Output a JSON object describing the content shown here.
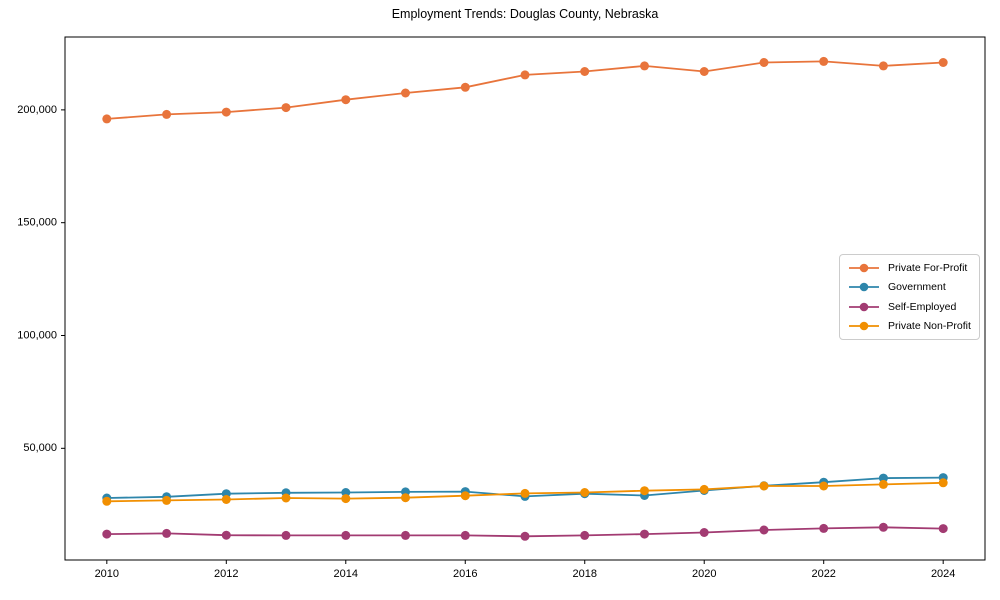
{
  "chart_data": {
    "type": "line",
    "title": "Employment Trends: Douglas County, Nebraska",
    "xlabel": "",
    "ylabel": "",
    "grid": false,
    "legend_position": "center right",
    "xlim": [
      2009.3,
      2024.7
    ],
    "ylim": [
      500,
      232300
    ],
    "x": [
      2010,
      2011,
      2012,
      2013,
      2014,
      2015,
      2016,
      2017,
      2018,
      2019,
      2020,
      2021,
      2022,
      2023,
      2024
    ],
    "xticks": {
      "values": [
        2010,
        2012,
        2014,
        2016,
        2018,
        2020,
        2022,
        2024
      ],
      "labels": [
        "2010",
        "2012",
        "2014",
        "2016",
        "2018",
        "2020",
        "2022",
        "2024"
      ]
    },
    "yticks": {
      "values": [
        50000,
        100000,
        150000,
        200000
      ],
      "labels": [
        "50,000",
        "100,000",
        "150,000",
        "200,000"
      ]
    },
    "series": [
      {
        "name": "Private For-Profit",
        "color": "#E8743B",
        "values": [
          196000,
          198000,
          199000,
          201000,
          204500,
          207500,
          210000,
          215500,
          217000,
          219500,
          217000,
          221000,
          221500,
          219500,
          221000
        ]
      },
      {
        "name": "Government",
        "color": "#2E86AB",
        "values": [
          28000,
          28500,
          29900,
          30300,
          30400,
          30700,
          30800,
          28700,
          29900,
          29100,
          31300,
          33400,
          35000,
          36800,
          37000
        ]
      },
      {
        "name": "Self-Employed",
        "color": "#A23B72",
        "values": [
          12000,
          12300,
          11500,
          11400,
          11400,
          11400,
          11400,
          11000,
          11400,
          12000,
          12700,
          13800,
          14500,
          15000,
          14400
        ]
      },
      {
        "name": "Private Non-Profit",
        "color": "#F18F01",
        "values": [
          26500,
          26900,
          27300,
          28000,
          27700,
          28100,
          29000,
          30000,
          30400,
          31200,
          31800,
          33300,
          33300,
          34000,
          34700
        ]
      }
    ]
  }
}
